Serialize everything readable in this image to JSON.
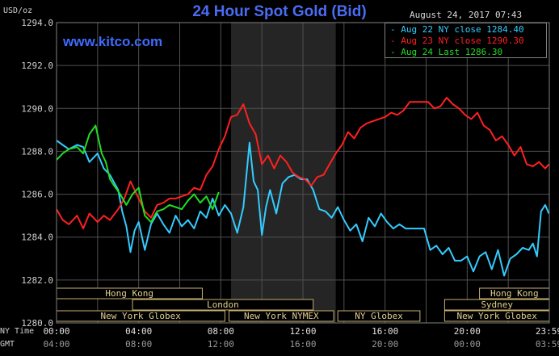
{
  "chart_data": {
    "type": "line",
    "title": "24 Hour Spot Gold (Bid)",
    "brand": "www.kitco.com",
    "date": "August 24, 2017 07:43",
    "y_unit": "USD/oz",
    "ylim": [
      1280,
      1294
    ],
    "y_ticks": [
      "1280.0",
      "1282.0",
      "1284.0",
      "1286.0",
      "1288.0",
      "1290.0",
      "1292.0",
      "1294.0"
    ],
    "y_tick_values": [
      1280,
      1282,
      1284,
      1286,
      1288,
      1290,
      1292,
      1294
    ],
    "xlim": [
      0,
      24
    ],
    "x_ticks_ny": [
      "00:00",
      "04:00",
      "08:00",
      "12:00",
      "16:00",
      "20:00",
      "23:59"
    ],
    "x_ticks_gmt": [
      "04:00",
      "08:00",
      "12:00",
      "16:00",
      "20:00",
      "00:00",
      "03:59"
    ],
    "x_tick_values": [
      0,
      4,
      8,
      12,
      16,
      20,
      23.98
    ],
    "x_row_label_ny": "NY Time",
    "x_row_label_gmt": "GMT",
    "shaded_session": [
      8.5,
      13.6
    ],
    "grid": true,
    "legend_position": "top-right",
    "series": [
      {
        "name": "Aug 22 NY close 1284.40",
        "color": "#33ccff",
        "x": [
          0,
          0.3,
          0.6,
          1,
          1.3,
          1.6,
          2,
          2.3,
          2.6,
          3,
          3.2,
          3.4,
          3.6,
          3.8,
          4,
          4.3,
          4.6,
          4.9,
          5.2,
          5.5,
          5.8,
          6.1,
          6.4,
          6.7,
          7,
          7.3,
          7.6,
          7.9,
          8.2,
          8.5,
          8.8,
          9.1,
          9.4,
          9.6,
          9.8,
          10,
          10.2,
          10.4,
          10.7,
          11,
          11.3,
          11.6,
          11.9,
          12.2,
          12.5,
          12.8,
          13.1,
          13.4,
          13.7,
          14,
          14.3,
          14.6,
          14.9,
          15.2,
          15.5,
          15.8,
          16.1,
          16.4,
          16.7,
          17,
          17.3,
          17.6,
          17.9,
          18.2,
          18.5,
          18.8,
          19.1,
          19.4,
          19.7,
          20,
          20.3,
          20.6,
          20.9,
          21.2,
          21.5,
          21.8,
          22.1,
          22.4,
          22.7,
          23,
          23.2,
          23.4,
          23.6,
          23.8,
          23.98
        ],
        "values": [
          1288.5,
          1288.3,
          1288.1,
          1288.3,
          1288.2,
          1287.5,
          1287.9,
          1287.2,
          1286.9,
          1286.2,
          1285.2,
          1284.5,
          1283.3,
          1284.3,
          1284.7,
          1283.4,
          1284.6,
          1285.1,
          1284.6,
          1284.2,
          1285.0,
          1284.5,
          1284.8,
          1284.4,
          1285.2,
          1284.9,
          1285.8,
          1285.0,
          1285.5,
          1285.1,
          1284.2,
          1285.4,
          1288.4,
          1286.6,
          1286.2,
          1284.1,
          1285.4,
          1286.2,
          1285.1,
          1286.5,
          1286.8,
          1286.9,
          1286.7,
          1286.7,
          1286.2,
          1285.3,
          1285.2,
          1284.9,
          1285.4,
          1284.8,
          1284.3,
          1284.6,
          1283.8,
          1284.9,
          1284.5,
          1285.1,
          1284.7,
          1284.4,
          1284.6,
          1284.4,
          1284.4,
          1284.4,
          1284.4,
          1283.4,
          1283.6,
          1283.2,
          1283.5,
          1282.9,
          1282.9,
          1283.1,
          1282.4,
          1283.1,
          1283.3,
          1282.5,
          1283.4,
          1282.2,
          1283.0,
          1283.2,
          1283.5,
          1283.4,
          1283.7,
          1283.1,
          1285.2,
          1285.5,
          1285.1
        ]
      },
      {
        "name": "Aug 23 NY close 1290.30",
        "color": "#ff2020",
        "x": [
          0,
          0.3,
          0.6,
          1,
          1.3,
          1.6,
          2,
          2.3,
          2.6,
          3,
          3.3,
          3.6,
          4,
          4.3,
          4.6,
          4.9,
          5.2,
          5.5,
          5.8,
          6.1,
          6.4,
          6.7,
          7,
          7.3,
          7.6,
          7.9,
          8.2,
          8.5,
          8.8,
          9.1,
          9.4,
          9.7,
          10,
          10.3,
          10.6,
          10.9,
          11.2,
          11.5,
          11.8,
          12.1,
          12.4,
          12.7,
          13,
          13.3,
          13.6,
          13.9,
          14.2,
          14.5,
          14.8,
          15.1,
          15.4,
          15.7,
          16,
          16.3,
          16.6,
          16.9,
          17.2,
          17.5,
          17.8,
          18.1,
          18.4,
          18.7,
          19,
          19.3,
          19.6,
          19.9,
          20.2,
          20.5,
          20.8,
          21.1,
          21.4,
          21.7,
          22,
          22.3,
          22.6,
          22.9,
          23.2,
          23.5,
          23.8,
          23.98
        ],
        "values": [
          1285.3,
          1284.8,
          1284.6,
          1285.0,
          1284.4,
          1285.1,
          1284.7,
          1285.0,
          1284.8,
          1285.3,
          1285.8,
          1286.6,
          1285.8,
          1285.2,
          1284.9,
          1285.5,
          1285.6,
          1285.8,
          1285.8,
          1285.9,
          1286.0,
          1286.3,
          1286.2,
          1286.9,
          1287.3,
          1288.1,
          1288.7,
          1289.6,
          1289.7,
          1290.2,
          1289.3,
          1288.8,
          1287.4,
          1287.8,
          1287.2,
          1287.8,
          1287.5,
          1287.0,
          1286.8,
          1286.7,
          1286.4,
          1286.8,
          1286.9,
          1287.4,
          1287.9,
          1288.3,
          1288.9,
          1288.6,
          1289.1,
          1289.3,
          1289.4,
          1289.5,
          1289.6,
          1289.8,
          1289.7,
          1289.9,
          1290.3,
          1290.3,
          1290.3,
          1290.3,
          1290.0,
          1290.1,
          1290.5,
          1290.2,
          1290.0,
          1289.7,
          1289.5,
          1289.8,
          1289.2,
          1289.0,
          1288.5,
          1288.7,
          1288.3,
          1287.8,
          1288.2,
          1287.4,
          1287.3,
          1287.5,
          1287.2,
          1287.4
        ]
      },
      {
        "name": "Aug 24 Last 1286.30",
        "color": "#22dd22",
        "x": [
          0,
          0.3,
          0.6,
          1,
          1.3,
          1.6,
          1.9,
          2.2,
          2.4,
          2.6,
          2.8,
          3.1,
          3.4,
          3.7,
          4,
          4.3,
          4.6,
          4.9,
          5.2,
          5.5,
          5.8,
          6.1,
          6.4,
          6.7,
          7,
          7.3,
          7.6,
          7.9
        ],
        "values": [
          1287.6,
          1287.9,
          1288.1,
          1288.2,
          1287.9,
          1288.8,
          1289.2,
          1287.9,
          1287.5,
          1286.7,
          1286.4,
          1286.0,
          1285.5,
          1286.0,
          1286.3,
          1285.0,
          1284.7,
          1285.2,
          1285.3,
          1285.5,
          1285.4,
          1285.3,
          1285.7,
          1286.0,
          1285.6,
          1285.9,
          1285.3,
          1286.1
        ]
      }
    ],
    "sessions": [
      {
        "label": "Hong Kong",
        "start": 0,
        "end": 7.1,
        "row": 0
      },
      {
        "label": "London",
        "start": 3.7,
        "end": 12.5,
        "row": 1
      },
      {
        "label": "New York Globex",
        "start": 0,
        "end": 8.2,
        "row": 2
      },
      {
        "label": "New York NYMEX",
        "start": 8.4,
        "end": 13.5,
        "row": 2
      },
      {
        "label": "NY Globex",
        "start": 13.7,
        "end": 17.7,
        "row": 2
      },
      {
        "label": "Hong Kong",
        "start": 20.6,
        "end": 24,
        "row": 0
      },
      {
        "label": "Sydney",
        "start": 18.9,
        "end": 24,
        "row": 1
      },
      {
        "label": "New York Globex",
        "start": 18.9,
        "end": 24,
        "row": 2
      }
    ]
  }
}
